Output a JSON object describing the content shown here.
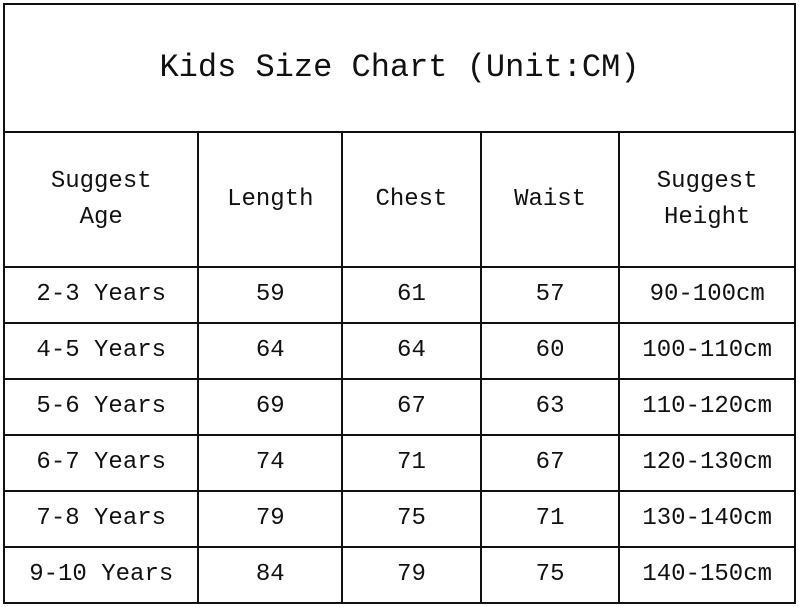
{
  "title": "Kids Size Chart (Unit:CM)",
  "headers": [
    "Suggest Age",
    "Length",
    "Chest",
    "Waist",
    "Suggest Height"
  ],
  "header_lines": [
    [
      "Suggest",
      "Age"
    ],
    [
      "Length"
    ],
    [
      "Chest"
    ],
    [
      "Waist"
    ],
    [
      "Suggest",
      "Height"
    ]
  ],
  "rows": [
    [
      "2-3 Years",
      "59",
      "61",
      "57",
      "90-100cm"
    ],
    [
      "4-5 Years",
      "64",
      "64",
      "60",
      "100-110cm"
    ],
    [
      "5-6 Years",
      "69",
      "67",
      "63",
      "110-120cm"
    ],
    [
      "6-7 Years",
      "74",
      "71",
      "67",
      "120-130cm"
    ],
    [
      "7-8 Years",
      "79",
      "75",
      "71",
      "130-140cm"
    ],
    [
      "9-10 Years",
      "84",
      "79",
      "75",
      "140-150cm"
    ]
  ]
}
